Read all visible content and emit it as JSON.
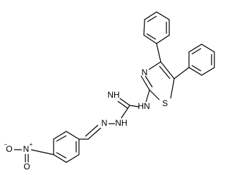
{
  "atoms": {
    "thiazole_n": "N",
    "thiazole_s": "S",
    "imine_nh": "NH",
    "amine_nh": "HN",
    "hydrazone_n": "N",
    "hydrazine_nh": "NH",
    "nitro_n": "N",
    "nitro_n_charge": "+",
    "nitro_o1": "O",
    "nitro_o1_charge": "−",
    "nitro_o2": "O"
  }
}
